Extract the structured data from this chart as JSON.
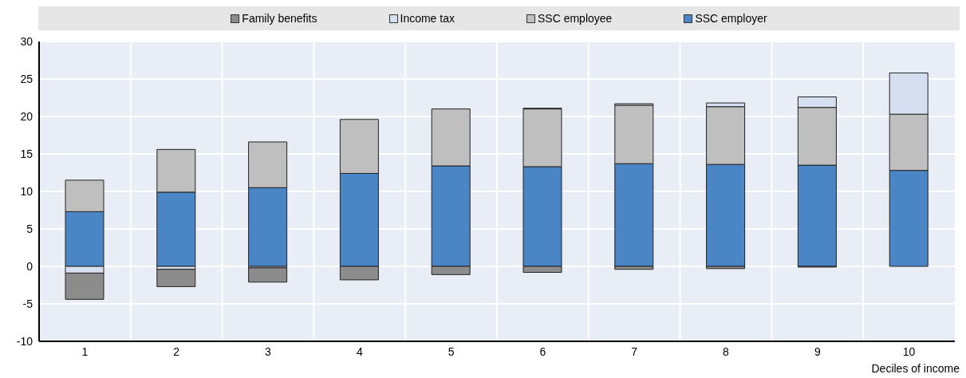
{
  "chart_data": {
    "type": "bar",
    "stacked": true,
    "xlabel": "Deciles of income",
    "categories": [
      "1",
      "2",
      "3",
      "4",
      "5",
      "6",
      "7",
      "8",
      "9",
      "10"
    ],
    "series": [
      {
        "name": "SSC employer",
        "color": "#4a86c5",
        "values": [
          7.3,
          9.9,
          10.5,
          12.4,
          13.4,
          13.3,
          13.7,
          13.6,
          13.5,
          12.8
        ]
      },
      {
        "name": "SSC employee",
        "color": "#bfbfbf",
        "values": [
          4.2,
          5.7,
          6.1,
          7.2,
          7.6,
          7.7,
          7.8,
          7.7,
          7.7,
          7.5
        ]
      },
      {
        "name": "Income tax",
        "color": "#d6dff0",
        "values": [
          -0.9,
          -0.4,
          -0.2,
          0,
          0,
          0.1,
          0.2,
          0.5,
          1.4,
          5.5
        ]
      },
      {
        "name": "Family benefits",
        "color": "#8c8c8c",
        "values": [
          -3.5,
          -2.3,
          -1.9,
          -1.8,
          -1.1,
          -0.8,
          -0.4,
          -0.3,
          -0.1,
          0
        ]
      }
    ],
    "ylim": [
      -10,
      30
    ],
    "yticks": [
      -10,
      -5,
      0,
      5,
      10,
      15,
      20,
      25,
      30
    ],
    "grid": true,
    "legend": "top"
  }
}
